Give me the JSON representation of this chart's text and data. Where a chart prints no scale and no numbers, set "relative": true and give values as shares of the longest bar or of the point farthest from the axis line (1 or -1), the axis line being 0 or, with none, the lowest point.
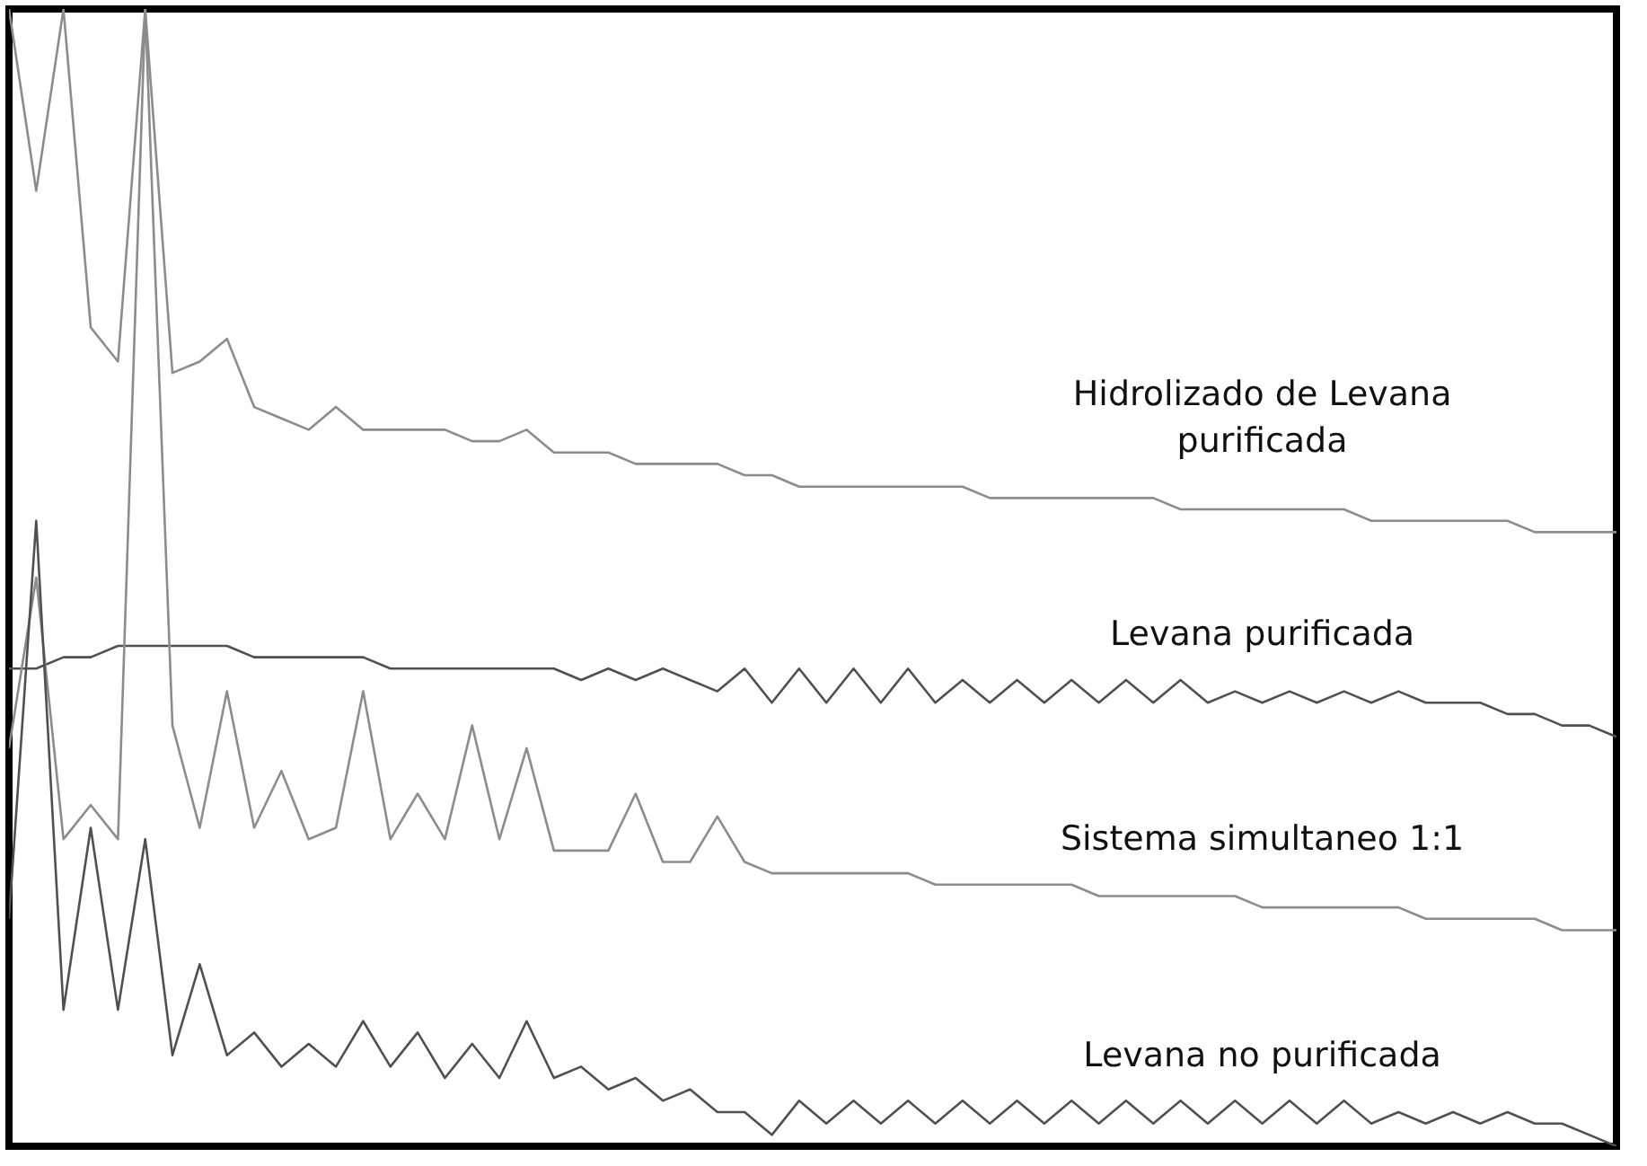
{
  "chart_data": {
    "type": "line",
    "relative": true,
    "legend": false,
    "marker": "none",
    "line_style": "solid",
    "categories": [
      null,
      null,
      null,
      null,
      null,
      null,
      null,
      null,
      null,
      null,
      null,
      null,
      null,
      null,
      null,
      null,
      null,
      null,
      null,
      null,
      null,
      null,
      null,
      null,
      null,
      null,
      null,
      null,
      null,
      null,
      null,
      null,
      null,
      null,
      null,
      null,
      null,
      null,
      null,
      null,
      null,
      null,
      null,
      null,
      null,
      null,
      null,
      null,
      null,
      null,
      null,
      null,
      null,
      null,
      null,
      null,
      null,
      null,
      null,
      null
    ],
    "series": [
      {
        "name": "Hidrolizado de Levana purificada",
        "color": "#8c8c8c",
        "values": [
          1.0,
          0.84,
          1.0,
          0.72,
          0.69,
          1.0,
          0.68,
          0.69,
          0.71,
          0.65,
          0.64,
          0.63,
          0.65,
          0.63,
          0.63,
          0.63,
          0.63,
          0.62,
          0.62,
          0.63,
          0.61,
          0.61,
          0.61,
          0.6,
          0.6,
          0.6,
          0.6,
          0.59,
          0.59,
          0.58,
          0.58,
          0.58,
          0.58,
          0.58,
          0.58,
          0.58,
          0.57,
          0.57,
          0.57,
          0.57,
          0.57,
          0.57,
          0.57,
          0.56,
          0.56,
          0.56,
          0.56,
          0.56,
          0.56,
          0.56,
          0.55,
          0.55,
          0.55,
          0.55,
          0.55,
          0.55,
          0.54,
          0.54,
          0.54,
          0.54
        ]
      },
      {
        "name": "Levana purificada",
        "color": "#505050",
        "values": [
          0.42,
          0.42,
          0.43,
          0.43,
          0.44,
          0.44,
          0.44,
          0.44,
          0.44,
          0.43,
          0.43,
          0.43,
          0.43,
          0.43,
          0.42,
          0.42,
          0.42,
          0.42,
          0.42,
          0.42,
          0.42,
          0.41,
          0.42,
          0.41,
          0.42,
          0.41,
          0.4,
          0.42,
          0.39,
          0.42,
          0.39,
          0.42,
          0.39,
          0.42,
          0.39,
          0.41,
          0.39,
          0.41,
          0.39,
          0.41,
          0.39,
          0.41,
          0.39,
          0.41,
          0.39,
          0.4,
          0.39,
          0.4,
          0.39,
          0.4,
          0.39,
          0.4,
          0.39,
          0.39,
          0.39,
          0.38,
          0.38,
          0.37,
          0.37,
          0.36
        ]
      },
      {
        "name": "Sistema simultaneo 1:1",
        "color": "#8c8c8c",
        "values": [
          0.35,
          0.5,
          0.27,
          0.3,
          0.27,
          1.0,
          0.37,
          0.28,
          0.4,
          0.28,
          0.33,
          0.27,
          0.28,
          0.4,
          0.27,
          0.31,
          0.27,
          0.37,
          0.27,
          0.35,
          0.26,
          0.26,
          0.26,
          0.31,
          0.25,
          0.25,
          0.29,
          0.25,
          0.24,
          0.24,
          0.24,
          0.24,
          0.24,
          0.24,
          0.23,
          0.23,
          0.23,
          0.23,
          0.23,
          0.23,
          0.22,
          0.22,
          0.22,
          0.22,
          0.22,
          0.22,
          0.21,
          0.21,
          0.21,
          0.21,
          0.21,
          0.21,
          0.2,
          0.2,
          0.2,
          0.2,
          0.2,
          0.19,
          0.19,
          0.19
        ]
      },
      {
        "name": "Levana no purificada",
        "color": "#505050",
        "values": [
          0.2,
          0.55,
          0.12,
          0.28,
          0.12,
          0.27,
          0.08,
          0.16,
          0.08,
          0.1,
          0.07,
          0.09,
          0.07,
          0.11,
          0.07,
          0.1,
          0.06,
          0.09,
          0.06,
          0.11,
          0.06,
          0.07,
          0.05,
          0.06,
          0.04,
          0.05,
          0.03,
          0.03,
          0.01,
          0.04,
          0.02,
          0.04,
          0.02,
          0.04,
          0.02,
          0.04,
          0.02,
          0.04,
          0.02,
          0.04,
          0.02,
          0.04,
          0.02,
          0.04,
          0.02,
          0.04,
          0.02,
          0.04,
          0.02,
          0.04,
          0.02,
          0.03,
          0.02,
          0.03,
          0.02,
          0.03,
          0.02,
          0.02,
          0.01,
          0.0
        ]
      }
    ]
  }
}
